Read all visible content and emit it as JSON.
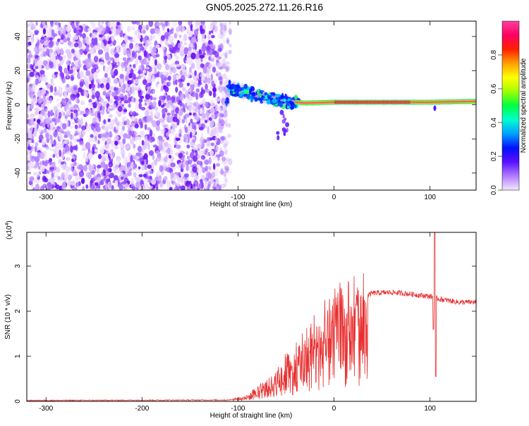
{
  "title": "GN05.2025.272.11.26.R16",
  "chart_data": [
    {
      "type": "heatmap",
      "ylabel": "Frequency (Hz)",
      "xlabel": "Height of straight line (km)",
      "xlim": [
        -320,
        148
      ],
      "ylim": [
        -50,
        49
      ],
      "x_ticks": [
        -300,
        -200,
        -100,
        0,
        100
      ],
      "y_ticks": [
        -40,
        -20,
        0,
        20,
        40
      ],
      "colorbar": {
        "label": "Normalized spectral amplitude",
        "range": [
          0,
          1
        ],
        "ticks": [
          "0.0",
          "0.2",
          "0.4",
          "0.6",
          "0.8"
        ],
        "colors": [
          "#f4e8ff",
          "#b07cff",
          "#5a10ff",
          "#0010ff",
          "#00a0ff",
          "#00ffd0",
          "#00ff40",
          "#a0ff00",
          "#ffff00",
          "#ffa000",
          "#ff2000",
          "#ff0060",
          "#ff40a0"
        ]
      },
      "features": {
        "noise_region_x": [
          -320,
          -108
        ],
        "signal_track": [
          {
            "x": -110,
            "y": 10
          },
          {
            "x": -90,
            "y": 7
          },
          {
            "x": -70,
            "y": 4
          },
          {
            "x": -50,
            "y": 2
          },
          {
            "x": -30,
            "y": 1
          },
          {
            "x": 0,
            "y": 1.5
          },
          {
            "x": 50,
            "y": 1.5
          },
          {
            "x": 100,
            "y": 1.5
          },
          {
            "x": 148,
            "y": 2
          }
        ]
      }
    },
    {
      "type": "line",
      "xlabel": "Height of straight line (km)",
      "ylabel": "SNR (10 * v/v)",
      "multiplier": "(x10",
      "multiplier_exp": "4",
      "multiplier_close": ")",
      "xlim": [
        -320,
        148
      ],
      "ylim": [
        0,
        3.75
      ],
      "x_ticks": [
        -300,
        -200,
        -100,
        0,
        100
      ],
      "y_ticks": [
        0,
        1,
        2,
        3
      ],
      "color": "#e83030",
      "envelope": [
        {
          "x": -320,
          "y": 0.02
        },
        {
          "x": -110,
          "y": 0.03
        },
        {
          "x": -95,
          "y": 0.08
        },
        {
          "x": -80,
          "y": 0.25
        },
        {
          "x": -65,
          "y": 0.5
        },
        {
          "x": -50,
          "y": 0.8
        },
        {
          "x": -35,
          "y": 1.1
        },
        {
          "x": -20,
          "y": 1.45
        },
        {
          "x": -5,
          "y": 1.8
        },
        {
          "x": 10,
          "y": 2.05
        },
        {
          "x": 25,
          "y": 2.25
        },
        {
          "x": 40,
          "y": 2.4
        },
        {
          "x": 60,
          "y": 2.42
        },
        {
          "x": 80,
          "y": 2.38
        },
        {
          "x": 100,
          "y": 2.33
        },
        {
          "x": 110,
          "y": 2.27
        },
        {
          "x": 130,
          "y": 2.2
        },
        {
          "x": 148,
          "y": 2.2
        }
      ],
      "spike": {
        "x": 105,
        "ymax": 3.75,
        "ymin": 0.55
      }
    }
  ]
}
